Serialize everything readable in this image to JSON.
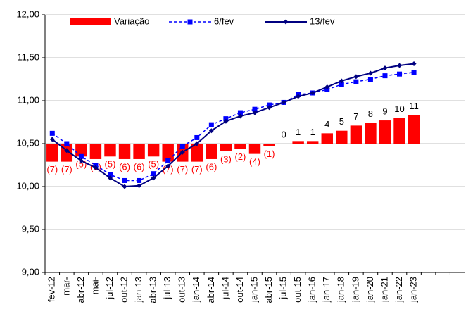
{
  "chart_data": {
    "type": "bar_line",
    "categories": [
      "fev-12",
      "mar-",
      "abr-12",
      "mai-",
      "jul-12",
      "out-12",
      "jan-13",
      "abr-13",
      "jul-13",
      "out-13",
      "jan-14",
      "abr-14",
      "jul-14",
      "out-14",
      "jan-15",
      "abr-15",
      "jul-15",
      "out-15",
      "jan-16",
      "jan-17",
      "jan-18",
      "jan-19",
      "jan-20",
      "jan-21",
      "jan-22",
      "jan-23",
      null,
      null,
      null
    ],
    "series": [
      {
        "name": "Variação",
        "kind": "bar",
        "axis": "y2",
        "color": "#ff0000",
        "values": [
          -7,
          -7,
          -5,
          -6,
          -5,
          -6,
          -6,
          -5,
          -7,
          -7,
          -7,
          -6,
          -3,
          -2,
          -4,
          -1,
          0,
          1,
          1,
          4,
          5,
          7,
          8,
          9,
          10,
          11,
          null,
          null,
          null
        ],
        "value_labels": [
          "(7)",
          "(7)",
          "(5)",
          "(6)",
          "(5)",
          "(6)",
          "(6)",
          "(5)",
          "(7)",
          "(7)",
          "(7)",
          "(6)",
          "(3)",
          "(2)",
          "(4)",
          "(1)",
          "0",
          "1",
          "1",
          "4",
          "5",
          "7",
          "8",
          "9",
          "10",
          "11",
          null,
          null,
          null
        ]
      },
      {
        "name": "6/fev",
        "kind": "line",
        "color": "#0000ff",
        "values": [
          10.62,
          10.5,
          10.35,
          10.25,
          10.14,
          10.07,
          10.07,
          10.15,
          10.3,
          10.47,
          10.57,
          10.72,
          10.79,
          10.86,
          10.9,
          10.95,
          10.98,
          11.07,
          11.09,
          11.13,
          11.19,
          11.22,
          11.25,
          11.29,
          11.31,
          11.33,
          null,
          null,
          null
        ]
      },
      {
        "name": "13/fev",
        "kind": "line",
        "color": "#000080",
        "values": [
          10.55,
          10.42,
          10.3,
          10.22,
          10.1,
          10.0,
          10.01,
          10.1,
          10.24,
          10.4,
          10.5,
          10.65,
          10.76,
          10.82,
          10.86,
          10.92,
          10.98,
          11.05,
          11.09,
          11.16,
          11.23,
          11.28,
          11.32,
          11.38,
          11.41,
          11.43,
          null,
          null,
          null
        ]
      }
    ],
    "ylim": [
      9,
      12
    ],
    "yticks": [
      {
        "value": 9,
        "label": "9,00"
      },
      {
        "value": 9.5,
        "label": "9,50"
      },
      {
        "value": 10,
        "label": "10,00"
      },
      {
        "value": 10.5,
        "label": "10,50"
      },
      {
        "value": 11,
        "label": "11,00"
      },
      {
        "value": 11.5,
        "label": "11,50"
      },
      {
        "value": 12,
        "label": "12,00"
      }
    ],
    "y2lim": [
      -50,
      50
    ],
    "grid": true
  }
}
